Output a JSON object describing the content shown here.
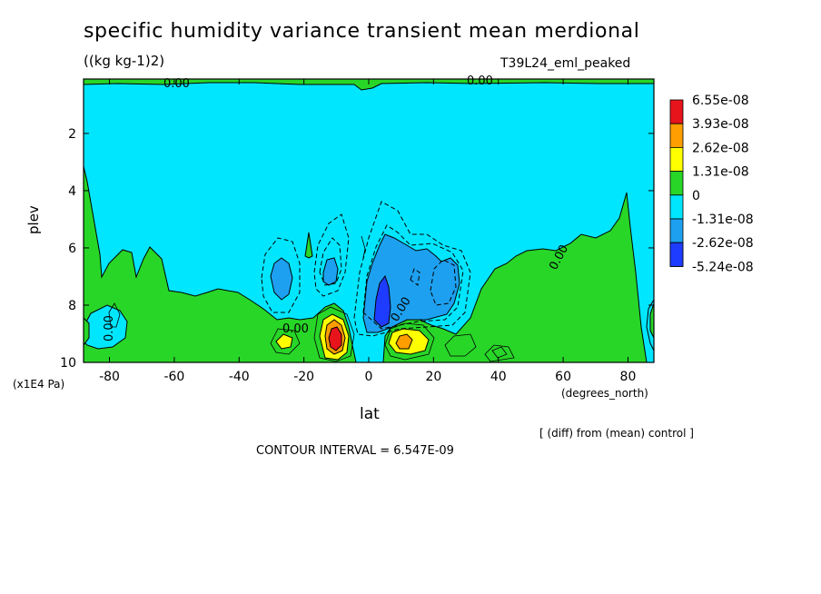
{
  "chart_data": {
    "type": "contour",
    "title": "specific humidity variance transient mean merdional",
    "units_label": "((kg kg-1)2)",
    "run_label": "T39L24_eml_peaked",
    "xlabel": "lat",
    "x_unit_label": "(degrees_north)",
    "ylabel": "plev",
    "y_unit_label": "(x1E4 Pa)",
    "x_ticks": [
      -80,
      -60,
      -40,
      -20,
      0,
      20,
      40,
      60,
      80
    ],
    "x_tick_labels": [
      "-80",
      "-60",
      "-40",
      "-20",
      "0",
      "20",
      "40",
      "60",
      "80"
    ],
    "y_ticks": [
      2,
      4,
      6,
      8,
      10
    ],
    "y_tick_labels": [
      "2",
      "4",
      "6",
      "8",
      "10"
    ],
    "xlim": [
      -88,
      88
    ],
    "ylim": [
      10,
      0.1
    ],
    "contour_interval_text": "CONTOUR INTERVAL = 6.547E-09",
    "diff_note": "[ (diff) from (mean) control ]",
    "zero_contour_label": "0.00",
    "legend": [
      {
        "label": "6.55e-08",
        "color": "#e8141c"
      },
      {
        "label": "3.93e-08",
        "color": "#ff9e00"
      },
      {
        "label": "2.62e-08",
        "color": "#ffff00"
      },
      {
        "label": "1.31e-08",
        "color": "#28d628"
      },
      {
        "label": "0",
        "color": "#00e6ff"
      },
      {
        "label": "-1.31e-08",
        "color": "#1ea0f0"
      },
      {
        "label": "-2.62e-08",
        "color": "#1e3cff"
      },
      {
        "label": "-5.24e-08",
        "color": ""
      }
    ],
    "features": [
      {
        "kind": "positive-max",
        "lat": -12,
        "plev": 9.2,
        "value": 6.5e-08
      },
      {
        "kind": "positive-max",
        "lat": 12,
        "plev": 9.3,
        "value": 3.9e-08
      },
      {
        "kind": "positive-max",
        "lat": -26,
        "plev": 9.3,
        "value": 2.6e-08
      },
      {
        "kind": "negative-min",
        "lat": 5,
        "plev": 7.8,
        "value": -2.62e-08
      },
      {
        "kind": "negative-min",
        "lat": 20,
        "plev": 6.9,
        "value": -2.62e-08
      },
      {
        "kind": "negative-min",
        "lat": -27,
        "plev": 6.8,
        "value": -2.62e-08
      },
      {
        "kind": "negative-min",
        "lat": -15,
        "plev": 6.8,
        "value": -2.62e-08
      }
    ]
  }
}
